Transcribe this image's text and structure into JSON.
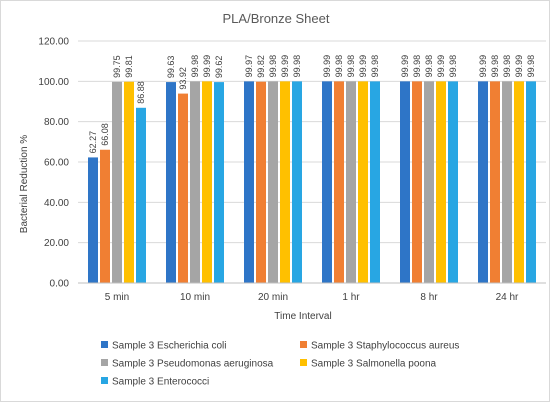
{
  "chart_data": {
    "type": "bar",
    "title": "PLA/Bronze Sheet",
    "xlabel": "Time Interval",
    "ylabel": "Bacterial Reduction %",
    "ylim": [
      0,
      120
    ],
    "yticks": [
      "0.00",
      "20.00",
      "40.00",
      "60.00",
      "80.00",
      "100.00",
      "120.00"
    ],
    "grid": true,
    "legend_position": "bottom",
    "categories": [
      "5 min",
      "10 min",
      "20 min",
      "1 hr",
      "8 hr",
      "24 hr"
    ],
    "series": [
      {
        "name": "Sample 3 Escherichia coli",
        "color": "#2e75c7",
        "values": [
          62.27,
          99.63,
          99.97,
          99.99,
          99.99,
          99.99
        ],
        "labels": [
          "62.27",
          "99.63",
          "99.97",
          "99.99",
          "99.99",
          "99.99"
        ]
      },
      {
        "name": "Sample 3 Staphylococcus aureus",
        "color": "#f07f33",
        "values": [
          66.08,
          93.92,
          99.82,
          99.98,
          99.98,
          99.98
        ],
        "labels": [
          "66.08",
          "93.92",
          "99.82",
          "99.98",
          "99.98",
          "99.98"
        ]
      },
      {
        "name": "Sample 3 Pseudomonas aeruginosa",
        "color": "#a5a5a5",
        "values": [
          99.75,
          99.98,
          99.98,
          99.98,
          99.98,
          99.98
        ],
        "labels": [
          "99.75",
          "99.98",
          "99.98",
          "99.98",
          "99.98",
          "99.98"
        ]
      },
      {
        "name": "Sample 3 Salmonella poona",
        "color": "#ffc000",
        "values": [
          99.81,
          99.99,
          99.99,
          99.99,
          99.99,
          99.99
        ],
        "labels": [
          "99.81",
          "99.99",
          "99.99",
          "99.99",
          "99.99",
          "99.99"
        ]
      },
      {
        "name": "Sample 3 Enterococci",
        "color": "#28a6e3",
        "values": [
          86.88,
          99.62,
          99.98,
          99.98,
          99.98,
          99.98
        ],
        "labels": [
          "86.88",
          "99.62",
          "99.98",
          "99.98",
          "99.98",
          "99.98"
        ]
      }
    ]
  }
}
